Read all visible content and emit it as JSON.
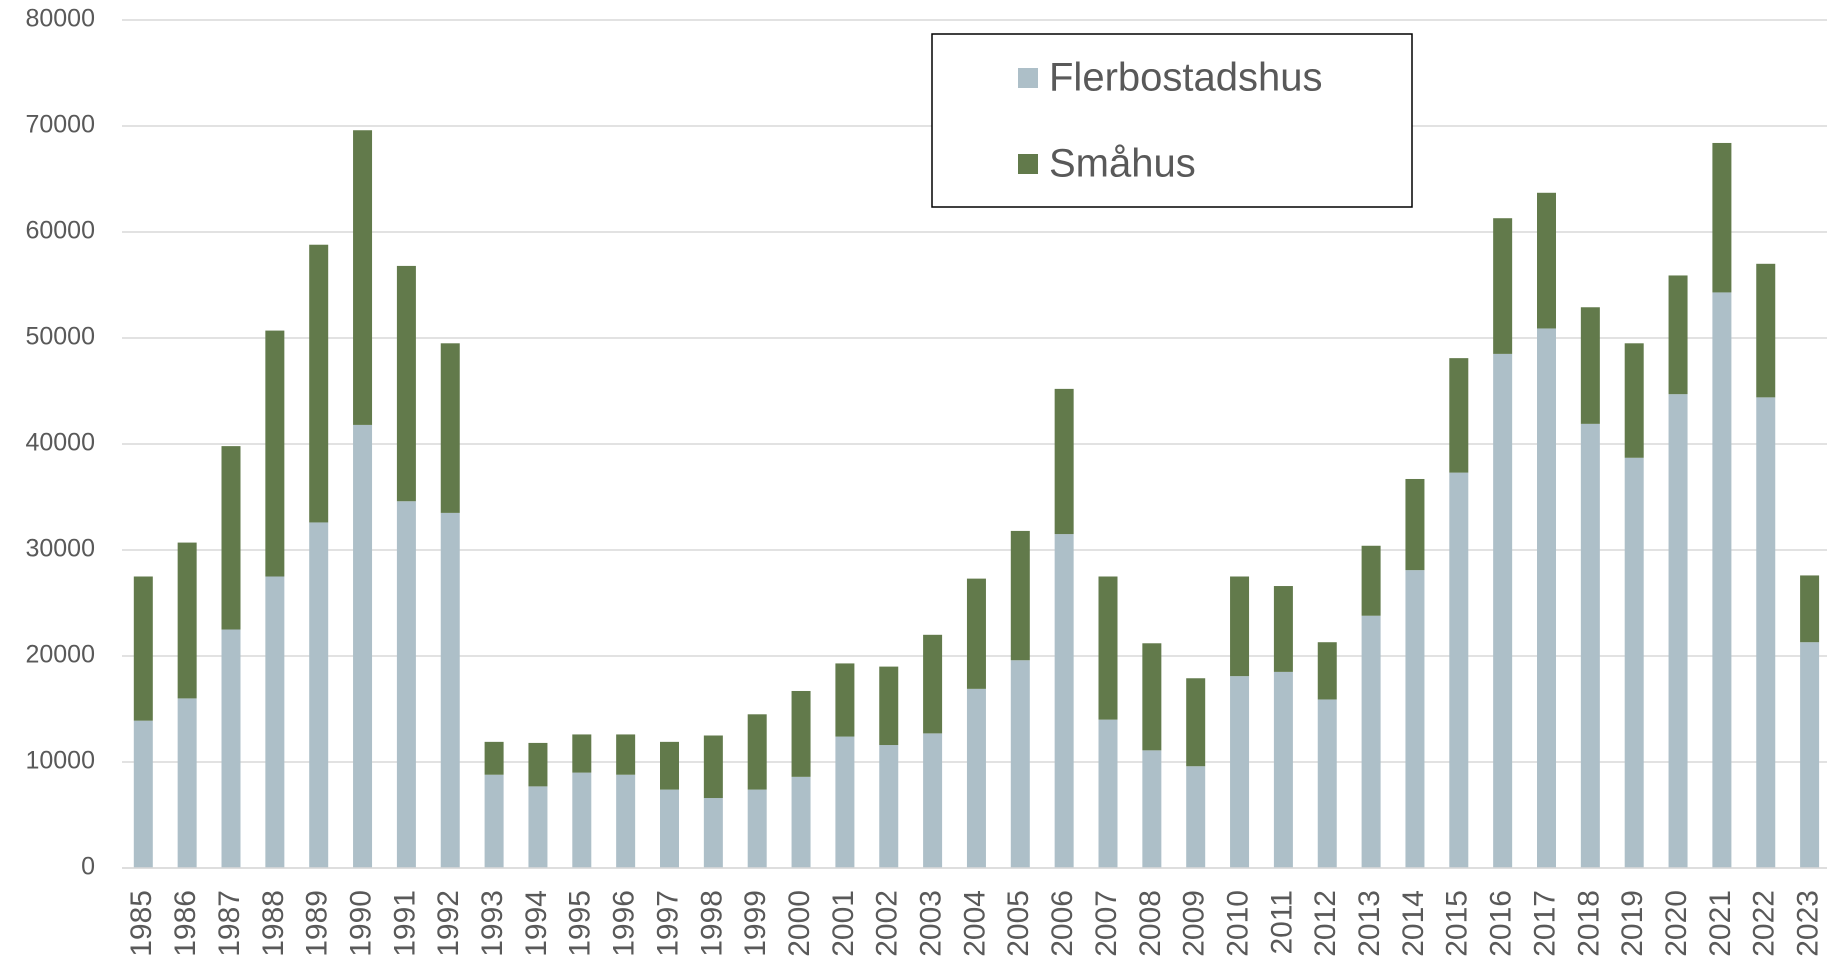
{
  "chart_data": {
    "type": "stacked_bar",
    "categories": [
      "1985",
      "1986",
      "1987",
      "1988",
      "1989",
      "1990",
      "1991",
      "1992",
      "1993",
      "1994",
      "1995",
      "1996",
      "1997",
      "1998",
      "1999",
      "2000",
      "2001",
      "2002",
      "2003",
      "2004",
      "2005",
      "2006",
      "2007",
      "2008",
      "2009",
      "2010",
      "2011",
      "2012",
      "2013",
      "2014",
      "2015",
      "2016",
      "2017",
      "2018",
      "2019",
      "2020",
      "2021",
      "2022",
      "2023"
    ],
    "series": [
      {
        "name": "Flerbostadshus",
        "color": "#adbfc8",
        "values": [
          13900,
          16000,
          22500,
          27500,
          32600,
          41800,
          34600,
          33500,
          8800,
          7700,
          9000,
          8800,
          7400,
          6600,
          7400,
          8600,
          12400,
          11600,
          12700,
          16900,
          19600,
          31500,
          14000,
          11100,
          9600,
          18100,
          18500,
          15900,
          23800,
          28100,
          37300,
          48500,
          50900,
          41900,
          38700,
          44700,
          54300,
          44400,
          21300
        ]
      },
      {
        "name": "Småhus",
        "color": "#627a4b",
        "values": [
          13600,
          14700,
          17300,
          23200,
          26200,
          27800,
          22200,
          16000,
          3100,
          4100,
          3600,
          3800,
          4500,
          5900,
          7100,
          8100,
          6900,
          7400,
          9300,
          10400,
          12200,
          13700,
          13500,
          10100,
          8300,
          9400,
          8100,
          5400,
          6600,
          8600,
          10800,
          12800,
          12800,
          11000,
          10800,
          11200,
          14100,
          12600,
          6300
        ]
      }
    ],
    "ylim": [
      0,
      80000
    ],
    "yticks": [
      0,
      10000,
      20000,
      30000,
      40000,
      50000,
      60000,
      70000,
      80000
    ],
    "grid": true,
    "legend": "top-right"
  }
}
